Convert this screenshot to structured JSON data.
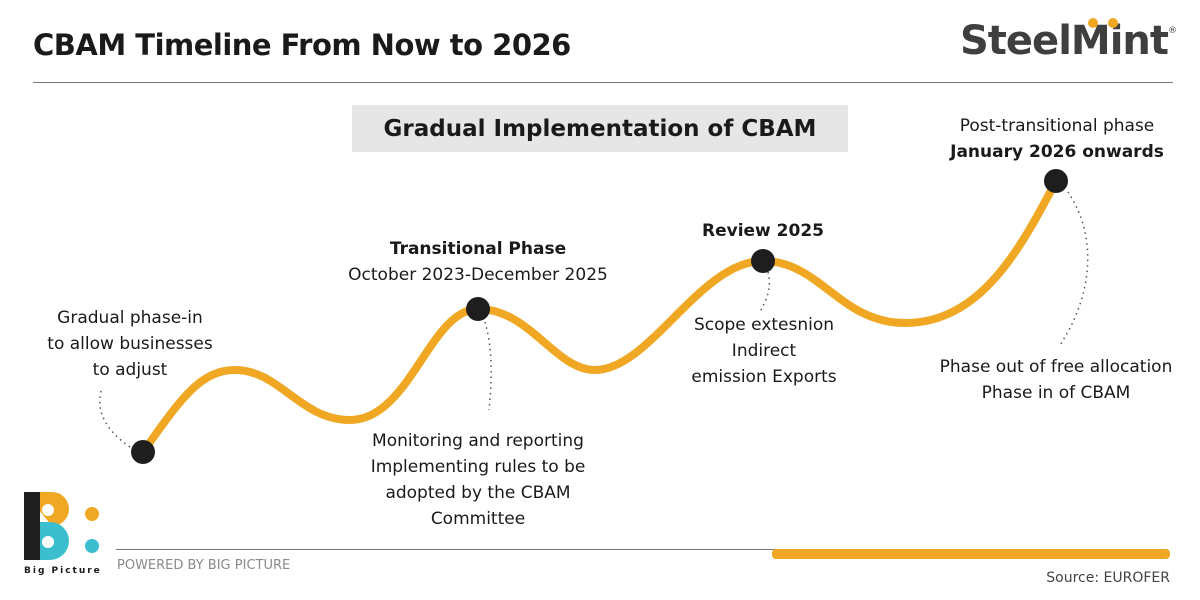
{
  "header": {
    "title": "CBAM Timeline From Now to 2026",
    "logo": "SteelMint",
    "logo_mark": "®"
  },
  "subtitle": "Gradual Implementation of CBAM",
  "milestones": [
    {
      "note": [
        "Gradual phase-in",
        "to allow businesses",
        "to adjust"
      ]
    },
    {
      "title": "Transitional Phase",
      "date": "October 2023-December 2025",
      "note": [
        "Monitoring and reporting",
        "Implementing rules to be",
        "adopted by the CBAM",
        "Committee"
      ]
    },
    {
      "title": "Review 2025",
      "note": [
        "Scope extesnion",
        "Indirect",
        "emission Exports"
      ]
    },
    {
      "title": "Post-transitional phase",
      "date": "January 2026 onwards",
      "note": [
        "Phase out of free allocation",
        "Phase in of CBAM"
      ]
    }
  ],
  "footer": {
    "powered": "POWERED BY BIG PICTURE",
    "brand": "Big Picture",
    "source": "Source: EUROFER"
  },
  "colors": {
    "accent": "#f0a824",
    "teal": "#3bbfcf",
    "dark": "#1e1e1e"
  }
}
